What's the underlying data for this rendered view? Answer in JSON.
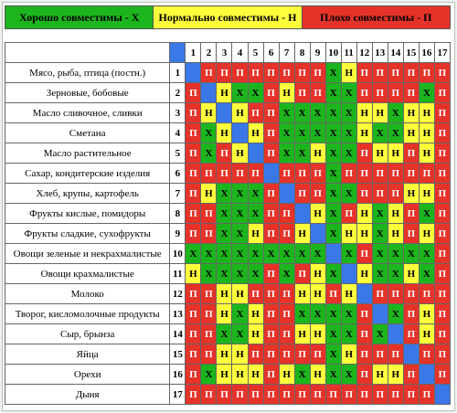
{
  "legend": {
    "good": "Хорошо совместимы - Х",
    "normal": "Нормально совместимы - Н",
    "bad": "Плохо совместимы - П"
  },
  "colors": {
    "X": "#1db51d",
    "N": "#ffff3c",
    "P": "#e5332a",
    "self": "#3a78e8"
  },
  "columns": [
    "1",
    "2",
    "3",
    "4",
    "5",
    "6",
    "7",
    "8",
    "9",
    "10",
    "11",
    "12",
    "13",
    "14",
    "15",
    "16",
    "17"
  ],
  "rows": [
    {
      "name": "Мясо, рыба, птица (постн.)",
      "num": "1",
      "cells": [
        "",
        "П",
        "П",
        "П",
        "П",
        "П",
        "П",
        "П",
        "П",
        "Х",
        "Н",
        "П",
        "П",
        "П",
        "П",
        "П",
        "П"
      ]
    },
    {
      "name": "Зерновые, бобовые",
      "num": "2",
      "cells": [
        "П",
        "",
        "Н",
        "Х",
        "Х",
        "П",
        "Н",
        "П",
        "П",
        "Х",
        "Х",
        "П",
        "П",
        "П",
        "П",
        "Х",
        "П"
      ]
    },
    {
      "name": "Масло сливочное, сливки",
      "num": "3",
      "cells": [
        "П",
        "Н",
        "",
        "Н",
        "П",
        "П",
        "Х",
        "Х",
        "Х",
        "Х",
        "Х",
        "Н",
        "Н",
        "Х",
        "Н",
        "Н",
        "П"
      ]
    },
    {
      "name": "Сметана",
      "num": "4",
      "cells": [
        "П",
        "Х",
        "Н",
        "",
        "Н",
        "П",
        "Х",
        "Х",
        "Х",
        "Х",
        "Х",
        "Н",
        "Х",
        "Х",
        "Н",
        "Н",
        "П"
      ]
    },
    {
      "name": "Масло растительное",
      "num": "5",
      "cells": [
        "П",
        "Х",
        "П",
        "Н",
        "",
        "П",
        "Х",
        "Х",
        "Н",
        "Х",
        "Х",
        "П",
        "Н",
        "Н",
        "П",
        "Н",
        "П"
      ]
    },
    {
      "name": "Сахар, кондитерские изделия",
      "num": "6",
      "cells": [
        "П",
        "П",
        "П",
        "П",
        "П",
        "",
        "П",
        "П",
        "П",
        "Х",
        "П",
        "П",
        "П",
        "П",
        "П",
        "П",
        "П"
      ]
    },
    {
      "name": "Хлеб, крупы, картофель",
      "num": "7",
      "cells": [
        "П",
        "Н",
        "Х",
        "Х",
        "Х",
        "П",
        "",
        "П",
        "П",
        "Х",
        "Х",
        "П",
        "П",
        "П",
        "Н",
        "Н",
        "П"
      ]
    },
    {
      "name": "Фрукты кислые, помидоры",
      "num": "8",
      "cells": [
        "П",
        "П",
        "Х",
        "Х",
        "Х",
        "П",
        "П",
        "",
        "Н",
        "Х",
        "П",
        "Н",
        "Х",
        "Н",
        "П",
        "Х",
        "П"
      ]
    },
    {
      "name": "Фрукты сладкие, сухофрукты",
      "num": "9",
      "cells": [
        "П",
        "П",
        "Х",
        "Х",
        "Н",
        "П",
        "П",
        "Н",
        "",
        "Х",
        "Н",
        "Н",
        "Х",
        "Н",
        "П",
        "Н",
        "П"
      ]
    },
    {
      "name": "Овощи зеленые и некрахмалистые",
      "num": "10",
      "cells": [
        "Х",
        "Х",
        "Х",
        "Х",
        "Х",
        "Х",
        "Х",
        "Х",
        "Х",
        "",
        "Х",
        "П",
        "Х",
        "Х",
        "Х",
        "Х",
        "П"
      ]
    },
    {
      "name": "Овощи крахмалистые",
      "num": "11",
      "cells": [
        "Н",
        "Х",
        "Х",
        "Х",
        "Х",
        "П",
        "Х",
        "П",
        "Н",
        "Х",
        "",
        "Н",
        "Х",
        "Х",
        "Н",
        "Х",
        "П"
      ]
    },
    {
      "name": "Молоко",
      "num": "12",
      "cells": [
        "П",
        "П",
        "Н",
        "Н",
        "П",
        "П",
        "П",
        "Н",
        "Н",
        "П",
        "Н",
        "",
        "П",
        "П",
        "П",
        "П",
        "П"
      ]
    },
    {
      "name": "Творог, кисломолочные продукты",
      "num": "13",
      "cells": [
        "П",
        "П",
        "Н",
        "Х",
        "Н",
        "П",
        "П",
        "Х",
        "Х",
        "Х",
        "Х",
        "П",
        "",
        "Х",
        "П",
        "Н",
        "П"
      ]
    },
    {
      "name": "Сыр, брынза",
      "num": "14",
      "cells": [
        "П",
        "П",
        "Х",
        "Х",
        "Н",
        "П",
        "П",
        "Н",
        "Н",
        "Х",
        "Х",
        "П",
        "Х",
        "",
        "П",
        "Н",
        "П"
      ]
    },
    {
      "name": "Яйца",
      "num": "15",
      "cells": [
        "П",
        "П",
        "Н",
        "Н",
        "П",
        "П",
        "П",
        "П",
        "П",
        "Х",
        "Н",
        "П",
        "П",
        "П",
        "",
        "П",
        "П"
      ]
    },
    {
      "name": "Орехи",
      "num": "16",
      "cells": [
        "П",
        "Х",
        "Н",
        "Н",
        "Н",
        "П",
        "Н",
        "Х",
        "Н",
        "Х",
        "Х",
        "П",
        "Н",
        "Н",
        "П",
        "",
        "П"
      ]
    },
    {
      "name": "Дыня",
      "num": "17",
      "cells": [
        "П",
        "П",
        "П",
        "П",
        "П",
        "П",
        "П",
        "П",
        "П",
        "П",
        "П",
        "П",
        "П",
        "П",
        "П",
        "П",
        ""
      ]
    }
  ]
}
